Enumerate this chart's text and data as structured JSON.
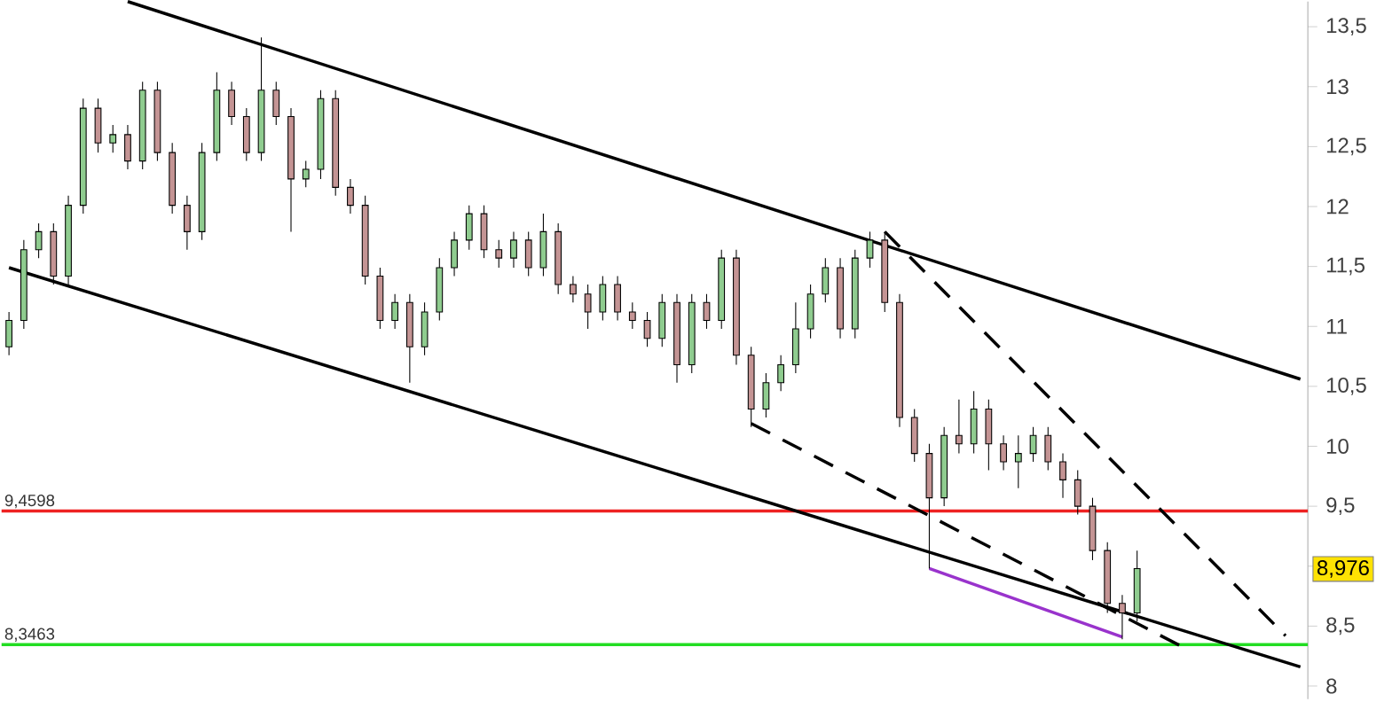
{
  "chart_data": {
    "type": "candlestick",
    "categories": [
      null,
      null,
      null,
      null,
      null,
      null,
      null,
      null,
      null,
      null,
      null,
      null,
      null,
      null,
      null,
      null,
      null,
      null,
      null,
      null,
      null,
      null,
      null,
      null,
      null,
      null,
      null,
      null,
      null,
      null,
      null,
      null,
      null,
      null,
      null,
      null,
      null,
      null,
      null,
      null,
      null,
      null,
      null,
      null,
      null,
      null,
      null,
      null,
      null,
      null,
      null,
      null,
      null,
      null,
      null,
      null,
      null,
      null,
      null,
      null,
      null,
      null,
      null,
      null,
      null,
      null,
      null,
      null,
      null,
      null,
      null,
      null,
      null,
      null,
      null,
      null,
      null,
      null,
      null,
      null,
      null,
      null,
      null,
      null,
      null,
      null,
      null,
      null
    ],
    "ohlc": [
      [
        10.83,
        11.12,
        10.76,
        11.05
      ],
      [
        11.05,
        11.72,
        10.98,
        11.64
      ],
      [
        11.64,
        11.86,
        11.57,
        11.79
      ],
      [
        11.79,
        11.86,
        11.35,
        11.42
      ],
      [
        11.42,
        12.09,
        11.35,
        12.01
      ],
      [
        12.01,
        12.9,
        11.94,
        12.82
      ],
      [
        12.82,
        12.9,
        12.45,
        12.53
      ],
      [
        12.53,
        12.68,
        12.45,
        12.6
      ],
      [
        12.6,
        12.68,
        12.31,
        12.38
      ],
      [
        12.38,
        13.04,
        12.31,
        12.97
      ],
      [
        12.97,
        13.04,
        12.38,
        12.45
      ],
      [
        12.45,
        12.53,
        11.94,
        12.01
      ],
      [
        12.01,
        12.09,
        11.64,
        11.79
      ],
      [
        11.79,
        12.53,
        11.72,
        12.45
      ],
      [
        12.45,
        13.12,
        12.38,
        12.97
      ],
      [
        12.97,
        13.04,
        12.68,
        12.75
      ],
      [
        12.75,
        12.82,
        12.38,
        12.45
      ],
      [
        12.45,
        13.41,
        12.38,
        12.97
      ],
      [
        12.97,
        13.04,
        12.68,
        12.75
      ],
      [
        12.75,
        12.82,
        11.79,
        12.23
      ],
      [
        12.23,
        12.38,
        12.16,
        12.31
      ],
      [
        12.31,
        12.97,
        12.23,
        12.9
      ],
      [
        12.9,
        12.97,
        12.09,
        12.16
      ],
      [
        12.16,
        12.23,
        11.94,
        12.01
      ],
      [
        12.01,
        12.09,
        11.35,
        11.42
      ],
      [
        11.42,
        11.49,
        10.98,
        11.05
      ],
      [
        11.05,
        11.27,
        10.98,
        11.2
      ],
      [
        11.2,
        11.27,
        10.53,
        10.83
      ],
      [
        10.83,
        11.2,
        10.76,
        11.12
      ],
      [
        11.12,
        11.57,
        11.05,
        11.49
      ],
      [
        11.49,
        11.79,
        11.42,
        11.72
      ],
      [
        11.72,
        12.01,
        11.64,
        11.94
      ],
      [
        11.94,
        12.01,
        11.57,
        11.64
      ],
      [
        11.64,
        11.72,
        11.49,
        11.57
      ],
      [
        11.57,
        11.79,
        11.49,
        11.72
      ],
      [
        11.72,
        11.79,
        11.42,
        11.49
      ],
      [
        11.49,
        11.94,
        11.42,
        11.79
      ],
      [
        11.79,
        11.86,
        11.27,
        11.35
      ],
      [
        11.35,
        11.42,
        11.2,
        11.27
      ],
      [
        11.27,
        11.35,
        10.98,
        11.12
      ],
      [
        11.12,
        11.42,
        11.05,
        11.35
      ],
      [
        11.35,
        11.42,
        11.05,
        11.12
      ],
      [
        11.12,
        11.2,
        10.98,
        11.05
      ],
      [
        11.05,
        11.12,
        10.83,
        10.9
      ],
      [
        10.9,
        11.27,
        10.83,
        11.2
      ],
      [
        11.2,
        11.27,
        10.53,
        10.68
      ],
      [
        10.68,
        11.27,
        10.61,
        11.2
      ],
      [
        11.2,
        11.27,
        10.98,
        11.05
      ],
      [
        11.05,
        11.64,
        10.98,
        11.57
      ],
      [
        11.57,
        11.64,
        10.68,
        10.76
      ],
      [
        10.76,
        10.83,
        10.16,
        10.31
      ],
      [
        10.31,
        10.61,
        10.24,
        10.53
      ],
      [
        10.53,
        10.76,
        10.46,
        10.68
      ],
      [
        10.68,
        11.2,
        10.61,
        10.98
      ],
      [
        10.98,
        11.35,
        10.9,
        11.27
      ],
      [
        11.27,
        11.57,
        11.2,
        11.49
      ],
      [
        11.49,
        11.57,
        10.9,
        10.98
      ],
      [
        10.98,
        11.64,
        10.9,
        11.57
      ],
      [
        11.57,
        11.79,
        11.49,
        11.72
      ],
      [
        11.72,
        11.79,
        11.12,
        11.2
      ],
      [
        11.2,
        11.27,
        10.16,
        10.24
      ],
      [
        10.24,
        10.31,
        9.87,
        9.94
      ],
      [
        9.94,
        10.02,
        8.98,
        9.57
      ],
      [
        9.57,
        10.16,
        9.5,
        10.09
      ],
      [
        10.09,
        10.39,
        9.94,
        10.02
      ],
      [
        10.02,
        10.46,
        9.94,
        10.31
      ],
      [
        10.31,
        10.39,
        9.8,
        10.02
      ],
      [
        10.02,
        10.09,
        9.8,
        9.87
      ],
      [
        9.87,
        10.09,
        9.65,
        9.94
      ],
      [
        9.94,
        10.16,
        9.87,
        10.09
      ],
      [
        10.09,
        10.16,
        9.8,
        9.87
      ],
      [
        9.87,
        9.94,
        9.57,
        9.72
      ],
      [
        9.72,
        9.8,
        9.43,
        9.5
      ],
      [
        9.5,
        9.57,
        9.05,
        9.13
      ],
      [
        9.13,
        9.2,
        8.61,
        8.69
      ],
      [
        8.69,
        8.76,
        8.39,
        8.61
      ],
      [
        8.61,
        9.13,
        8.54,
        8.98
      ],
      null,
      null,
      null,
      null,
      null,
      null,
      null,
      null,
      null,
      null,
      null
    ],
    "series": [
      {
        "type": "line",
        "values": [
          null,
          null,
          null,
          null,
          null,
          null,
          null,
          null,
          13.71,
          null,
          null,
          null,
          null,
          null,
          null,
          null,
          null,
          null,
          null,
          null,
          null,
          null,
          null,
          null,
          null,
          null,
          null,
          null,
          null,
          null,
          null,
          null,
          null,
          null,
          null,
          null,
          null,
          null,
          null,
          null,
          null,
          null,
          null,
          null,
          null,
          null,
          null,
          null,
          null,
          null,
          null,
          null,
          null,
          null,
          null,
          null,
          null,
          null,
          null,
          null,
          null,
          null,
          null,
          null,
          null,
          null,
          null,
          null,
          null,
          null,
          null,
          null,
          null,
          null,
          null,
          null,
          null,
          null,
          null,
          null,
          null,
          null,
          null,
          null,
          null,
          null,
          null,
          10.56
        ],
        "color": "#000000",
        "line_style": "solid"
      },
      {
        "type": "line",
        "values": [
          11.49,
          null,
          null,
          null,
          null,
          null,
          null,
          null,
          null,
          null,
          null,
          null,
          null,
          null,
          null,
          null,
          null,
          null,
          null,
          null,
          null,
          null,
          null,
          null,
          null,
          null,
          null,
          null,
          null,
          null,
          null,
          null,
          null,
          null,
          null,
          null,
          null,
          null,
          null,
          null,
          null,
          null,
          null,
          null,
          null,
          null,
          null,
          null,
          null,
          null,
          null,
          null,
          null,
          null,
          null,
          null,
          null,
          null,
          null,
          null,
          null,
          null,
          null,
          null,
          null,
          null,
          null,
          null,
          null,
          null,
          null,
          null,
          null,
          null,
          null,
          null,
          null,
          null,
          null,
          null,
          null,
          null,
          null,
          null,
          null,
          null,
          null,
          8.16
        ],
        "color": "#000000",
        "line_style": "solid"
      },
      {
        "type": "line",
        "values": [
          null,
          null,
          null,
          null,
          null,
          null,
          null,
          null,
          null,
          null,
          null,
          null,
          null,
          null,
          null,
          null,
          null,
          null,
          null,
          null,
          null,
          null,
          null,
          null,
          null,
          null,
          null,
          null,
          null,
          null,
          null,
          null,
          null,
          null,
          null,
          null,
          null,
          null,
          null,
          null,
          null,
          null,
          null,
          null,
          null,
          null,
          null,
          null,
          null,
          null,
          null,
          null,
          null,
          null,
          null,
          null,
          null,
          null,
          null,
          11.79,
          null,
          null,
          null,
          null,
          null,
          null,
          null,
          null,
          null,
          null,
          null,
          null,
          null,
          null,
          null,
          null,
          null,
          null,
          null,
          null,
          null,
          null,
          null,
          null,
          null,
          null,
          8.42,
          null
        ],
        "color": "#000000",
        "line_style": "dashed"
      },
      {
        "type": "line",
        "values": [
          null,
          null,
          null,
          null,
          null,
          null,
          null,
          null,
          null,
          null,
          null,
          null,
          null,
          null,
          null,
          null,
          null,
          null,
          null,
          null,
          null,
          null,
          null,
          null,
          null,
          null,
          null,
          null,
          null,
          null,
          null,
          null,
          null,
          null,
          null,
          null,
          null,
          null,
          null,
          null,
          null,
          null,
          null,
          null,
          null,
          null,
          null,
          null,
          null,
          null,
          10.19,
          null,
          null,
          null,
          null,
          null,
          null,
          null,
          null,
          null,
          null,
          null,
          null,
          null,
          null,
          null,
          null,
          null,
          null,
          null,
          null,
          null,
          null,
          null,
          null,
          null,
          null,
          null,
          null,
          8.33,
          null,
          null,
          null,
          null,
          null,
          null,
          null,
          null
        ],
        "color": "#000000",
        "line_style": "dashed"
      },
      {
        "type": "line",
        "values": [
          null,
          null,
          null,
          null,
          null,
          null,
          null,
          null,
          null,
          null,
          null,
          null,
          null,
          null,
          null,
          null,
          null,
          null,
          null,
          null,
          null,
          null,
          null,
          null,
          null,
          null,
          null,
          null,
          null,
          null,
          null,
          null,
          null,
          null,
          null,
          null,
          null,
          null,
          null,
          null,
          null,
          null,
          null,
          null,
          null,
          null,
          null,
          null,
          null,
          null,
          null,
          null,
          null,
          null,
          null,
          null,
          null,
          null,
          null,
          null,
          null,
          null,
          8.98,
          null,
          null,
          null,
          null,
          null,
          null,
          null,
          null,
          null,
          null,
          null,
          null,
          8.41,
          null,
          null,
          null,
          null,
          null,
          null,
          null,
          null,
          null,
          null,
          null,
          null
        ],
        "color": "#9933cc",
        "line_style": "solid"
      }
    ],
    "ref_lines": [
      {
        "axis": "y",
        "value": 9.4598,
        "label": "9,4598",
        "color": "#ee2222"
      },
      {
        "axis": "y",
        "value": 8.3463,
        "label": "8,3463",
        "color": "#22dd22"
      }
    ],
    "annotations": [
      {
        "text": "8,976",
        "y": 8.976
      }
    ],
    "ylim": [
      7.89,
      13.71
    ],
    "yticks": [
      8,
      {
        "value": 8.5,
        "label": "8,5"
      },
      {
        "value": 9,
        "label": null
      },
      {
        "value": 9.5,
        "label": "9,5"
      },
      10,
      {
        "value": 10.5,
        "label": "10,5"
      },
      11,
      {
        "value": 11.5,
        "label": "11,5"
      },
      12,
      {
        "value": 12.5,
        "label": "12,5"
      },
      13,
      {
        "value": 13.5,
        "label": "13,5"
      }
    ],
    "tick_labels": "y"
  }
}
